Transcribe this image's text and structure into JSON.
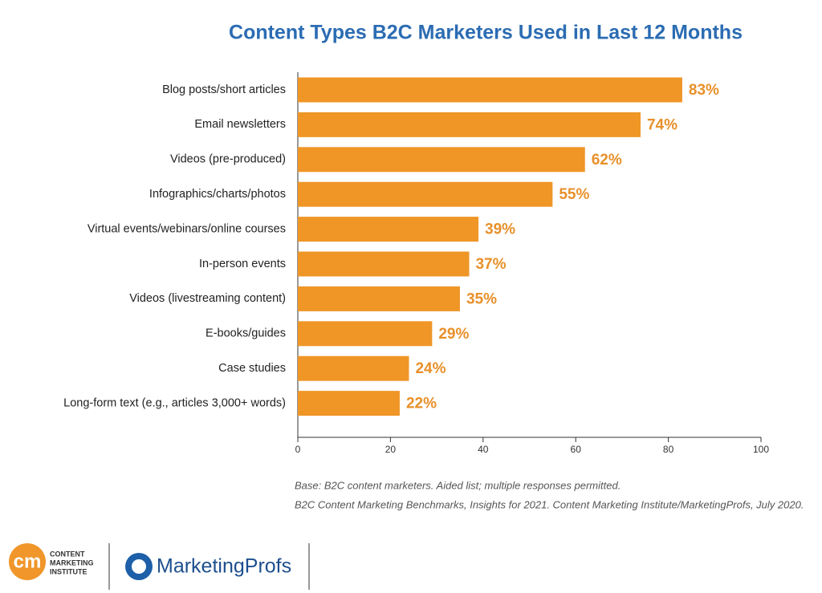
{
  "chart_data": {
    "type": "hbar",
    "title": "Content Types B2C Marketers Used in Last 12 Months",
    "categories": [
      "Blog posts/short articles",
      "Email newsletters",
      "Videos (pre-produced)",
      "Infographics/charts/photos",
      "Virtual events/webinars/online courses",
      "In-person events",
      "Videos (livestreaming content)",
      "E-books/guides",
      "Case studies",
      "Long-form text (e.g., articles 3,000+ words)"
    ],
    "values": [
      83,
      74,
      62,
      55,
      39,
      37,
      35,
      29,
      24,
      22
    ],
    "value_labels": [
      "83%",
      "74%",
      "62%",
      "55%",
      "39%",
      "37%",
      "35%",
      "29%",
      "24%",
      "22%"
    ],
    "color": "#ef9627",
    "xlim": [
      0,
      100
    ],
    "xticks": [
      0,
      20,
      40,
      60,
      80,
      100
    ],
    "grid": false,
    "notes": [
      "Base: B2C content marketers. Aided list; multiple responses permitted.",
      "B2C Content Marketing Benchmarks, Insights for 2021. Content Marketing Institute/MarketingProfs, July 2020."
    ]
  },
  "logos": {
    "cmi_mark": "cm",
    "cmi_lines": [
      "CONTENT",
      "MARKETING",
      "INSTITUTE"
    ],
    "mprofs": "MarketingProfs"
  }
}
